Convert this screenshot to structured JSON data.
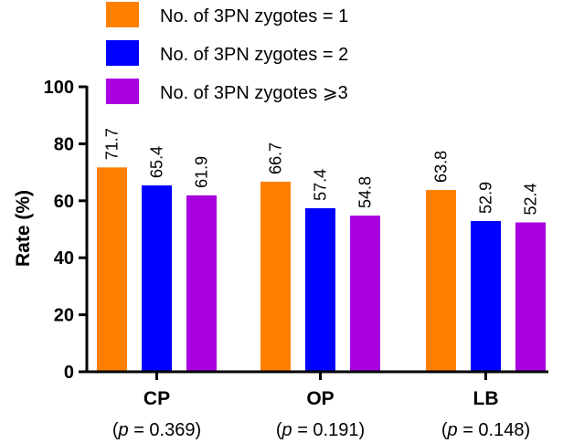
{
  "chart_data": {
    "type": "bar",
    "title": "",
    "xlabel": "",
    "ylabel": "Rate (%)",
    "ylim": [
      0,
      100
    ],
    "yticks": [
      0,
      20,
      40,
      60,
      80,
      100
    ],
    "categories": [
      "CP",
      "OP",
      "LB"
    ],
    "p_values": [
      "0.369",
      "0.191",
      "0.148"
    ],
    "p_prefix": "(",
    "p_symbol": "p",
    "p_equals": " = ",
    "p_suffix": ")",
    "legend_position": "top",
    "series": [
      {
        "name": "No. of 3PN zygotes = 1",
        "color": "#FF8000",
        "values": [
          71.7,
          66.7,
          63.8
        ],
        "labels": [
          "71.7",
          "66.7",
          "63.8"
        ]
      },
      {
        "name": "No. of 3PN zygotes = 2",
        "color": "#0000FF",
        "values": [
          65.4,
          57.4,
          52.9
        ],
        "labels": [
          "65.4",
          "57.4",
          "52.9"
        ]
      },
      {
        "name": "No. of 3PN zygotes ⩾3",
        "color": "#A800E0",
        "values": [
          61.9,
          54.8,
          52.4
        ],
        "labels": [
          "61.9",
          "54.8",
          "52.4"
        ]
      }
    ]
  }
}
